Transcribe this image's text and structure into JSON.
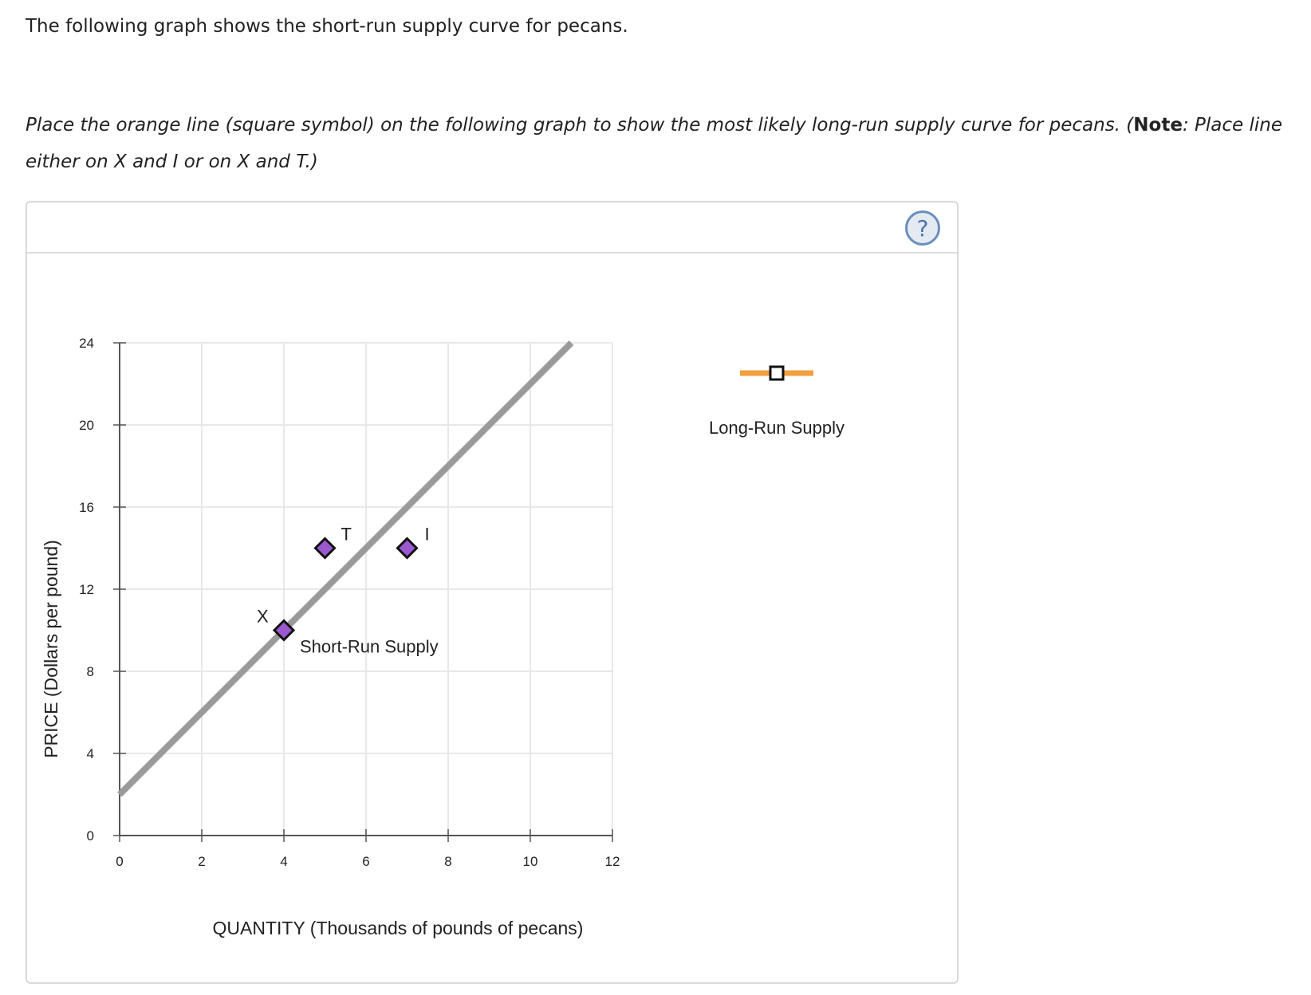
{
  "intro_text": "The following graph shows the short-run supply curve for pecans.",
  "instructions": {
    "part1": "Place the orange line (square symbol) on the following graph to show the most likely long-run supply curve for pecans. (",
    "note_label": "Note",
    "part2": ": Place line either on X and I or on X and T.)"
  },
  "help_icon_label": "?",
  "colors": {
    "supply_line": "#9a9a9a",
    "point_fill": "#9b59d0",
    "tool_line": "#f0a040",
    "grid": "#e8e8e8",
    "axis": "#555555"
  },
  "chart_data": {
    "type": "line",
    "xlabel": "QUANTITY (Thousands of pounds of pecans)",
    "ylabel": "PRICE (Dollars per pound)",
    "xlim": [
      0,
      12
    ],
    "ylim": [
      0,
      24
    ],
    "x_ticks": [
      "0",
      "2",
      "4",
      "6",
      "8",
      "10",
      "12"
    ],
    "y_ticks": [
      "0",
      "4",
      "8",
      "12",
      "16",
      "20",
      "24"
    ],
    "grid": true,
    "series": [
      {
        "name": "Short-Run Supply",
        "x": [
          0,
          11
        ],
        "y": [
          2,
          24
        ]
      }
    ],
    "points": [
      {
        "label": "X",
        "x": 4,
        "y": 10
      },
      {
        "label": "T",
        "x": 5,
        "y": 14
      },
      {
        "label": "I",
        "x": 7,
        "y": 14
      }
    ],
    "palette": [
      {
        "label": "Long-Run Supply",
        "symbol": "square"
      }
    ]
  }
}
